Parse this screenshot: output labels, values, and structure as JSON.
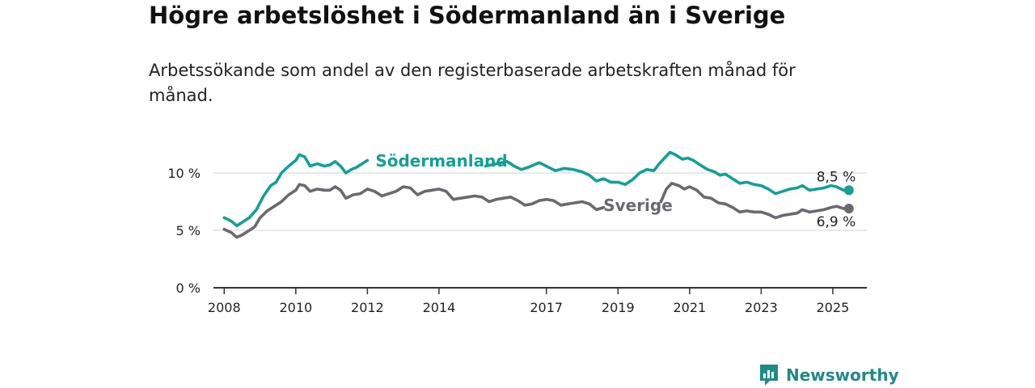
{
  "title": "Högre arbetslöshet i Södermanland än i Sverige",
  "subtitle": "Arbetssökande som andel av den registerbaserade arbetskraften månad för månad.",
  "brand": {
    "name": "Newsworthy",
    "icon": "newsworthy-logo-icon",
    "color": "#1f8a86"
  },
  "colors": {
    "sodermanland": "#13a095",
    "sverige": "#6b6870",
    "grid": "#d9d9d9",
    "axis": "#333333"
  },
  "chart_data": {
    "type": "line",
    "x_unit": "year",
    "xlim": [
      2007.7,
      2025.95
    ],
    "ylim": [
      0,
      10
    ],
    "yticks": [
      {
        "value": 0,
        "label": "0 %"
      },
      {
        "value": 5,
        "label": "5 %"
      },
      {
        "value": 10,
        "label": "10 %"
      }
    ],
    "xticks": [
      {
        "value": 2008,
        "label": "2008"
      },
      {
        "value": 2010,
        "label": "2010"
      },
      {
        "value": 2012,
        "label": "2012"
      },
      {
        "value": 2014,
        "label": "2014"
      },
      {
        "value": 2017,
        "label": "2017"
      },
      {
        "value": 2019,
        "label": "2019"
      },
      {
        "value": 2021,
        "label": "2021"
      },
      {
        "value": 2023,
        "label": "2023"
      },
      {
        "value": 2025,
        "label": "2025"
      }
    ],
    "series": [
      {
        "name": "Södermanland",
        "end_label": "8,5 %",
        "points": [
          [
            2008.0,
            6.1
          ],
          [
            2008.2,
            5.8
          ],
          [
            2008.35,
            5.4
          ],
          [
            2008.5,
            5.7
          ],
          [
            2008.7,
            6.1
          ],
          [
            2008.9,
            6.8
          ],
          [
            2009.1,
            8.0
          ],
          [
            2009.3,
            8.9
          ],
          [
            2009.45,
            9.2
          ],
          [
            2009.6,
            10.0
          ],
          [
            2009.8,
            10.6
          ],
          [
            2010.0,
            11.1
          ],
          [
            2010.1,
            11.6
          ],
          [
            2010.25,
            11.4
          ],
          [
            2010.4,
            10.6
          ],
          [
            2010.6,
            10.8
          ],
          [
            2010.8,
            10.6
          ],
          [
            2010.95,
            10.7
          ],
          [
            2011.1,
            11.0
          ],
          [
            2011.25,
            10.6
          ],
          [
            2011.4,
            10.0
          ],
          [
            2011.55,
            10.3
          ],
          [
            2011.7,
            10.5
          ],
          [
            2011.85,
            10.8
          ],
          [
            2012.0,
            11.1
          ],
          [
            2015.3,
            10.6
          ],
          [
            2015.6,
            10.8
          ],
          [
            2015.9,
            11.0
          ],
          [
            2016.1,
            10.6
          ],
          [
            2016.3,
            10.3
          ],
          [
            2016.5,
            10.5
          ],
          [
            2016.8,
            10.9
          ],
          [
            2017.0,
            10.6
          ],
          [
            2017.25,
            10.2
          ],
          [
            2017.5,
            10.4
          ],
          [
            2017.75,
            10.3
          ],
          [
            2018.0,
            10.1
          ],
          [
            2018.2,
            9.8
          ],
          [
            2018.4,
            9.3
          ],
          [
            2018.6,
            9.5
          ],
          [
            2018.8,
            9.2
          ],
          [
            2019.0,
            9.2
          ],
          [
            2019.2,
            9.0
          ],
          [
            2019.4,
            9.4
          ],
          [
            2019.6,
            10.0
          ],
          [
            2019.8,
            10.3
          ],
          [
            2020.0,
            10.2
          ],
          [
            2020.15,
            10.8
          ],
          [
            2020.3,
            11.3
          ],
          [
            2020.45,
            11.8
          ],
          [
            2020.6,
            11.6
          ],
          [
            2020.8,
            11.2
          ],
          [
            2020.95,
            11.3
          ],
          [
            2021.1,
            11.1
          ],
          [
            2021.3,
            10.7
          ],
          [
            2021.5,
            10.3
          ],
          [
            2021.7,
            10.1
          ],
          [
            2021.85,
            9.8
          ],
          [
            2022.0,
            9.9
          ],
          [
            2022.2,
            9.5
          ],
          [
            2022.4,
            9.1
          ],
          [
            2022.6,
            9.2
          ],
          [
            2022.8,
            9.0
          ],
          [
            2023.0,
            8.9
          ],
          [
            2023.2,
            8.6
          ],
          [
            2023.4,
            8.2
          ],
          [
            2023.6,
            8.4
          ],
          [
            2023.8,
            8.6
          ],
          [
            2024.0,
            8.7
          ],
          [
            2024.15,
            8.9
          ],
          [
            2024.35,
            8.5
          ],
          [
            2024.55,
            8.6
          ],
          [
            2024.75,
            8.7
          ],
          [
            2024.95,
            8.9
          ],
          [
            2025.1,
            8.8
          ],
          [
            2025.3,
            8.5
          ],
          [
            2025.45,
            8.5
          ]
        ]
      },
      {
        "name": "Sverige",
        "end_label": "6,9 %",
        "points": [
          [
            2008.0,
            5.1
          ],
          [
            2008.2,
            4.8
          ],
          [
            2008.35,
            4.4
          ],
          [
            2008.5,
            4.6
          ],
          [
            2008.7,
            5.0
          ],
          [
            2008.85,
            5.3
          ],
          [
            2009.0,
            6.1
          ],
          [
            2009.2,
            6.7
          ],
          [
            2009.4,
            7.1
          ],
          [
            2009.6,
            7.5
          ],
          [
            2009.8,
            8.1
          ],
          [
            2010.0,
            8.5
          ],
          [
            2010.1,
            9.0
          ],
          [
            2010.25,
            8.9
          ],
          [
            2010.4,
            8.4
          ],
          [
            2010.6,
            8.6
          ],
          [
            2010.8,
            8.5
          ],
          [
            2010.95,
            8.5
          ],
          [
            2011.1,
            8.8
          ],
          [
            2011.25,
            8.5
          ],
          [
            2011.4,
            7.8
          ],
          [
            2011.6,
            8.1
          ],
          [
            2011.8,
            8.2
          ],
          [
            2012.0,
            8.6
          ],
          [
            2012.2,
            8.4
          ],
          [
            2012.4,
            8.0
          ],
          [
            2012.6,
            8.2
          ],
          [
            2012.8,
            8.4
          ],
          [
            2013.0,
            8.8
          ],
          [
            2013.2,
            8.7
          ],
          [
            2013.4,
            8.1
          ],
          [
            2013.6,
            8.4
          ],
          [
            2013.8,
            8.5
          ],
          [
            2014.0,
            8.6
          ],
          [
            2014.2,
            8.4
          ],
          [
            2014.4,
            7.7
          ],
          [
            2014.6,
            7.8
          ],
          [
            2014.8,
            7.9
          ],
          [
            2015.0,
            8.0
          ],
          [
            2015.2,
            7.9
          ],
          [
            2015.4,
            7.5
          ],
          [
            2015.6,
            7.7
          ],
          [
            2015.8,
            7.8
          ],
          [
            2016.0,
            7.9
          ],
          [
            2016.2,
            7.6
          ],
          [
            2016.4,
            7.2
          ],
          [
            2016.6,
            7.3
          ],
          [
            2016.8,
            7.6
          ],
          [
            2017.0,
            7.7
          ],
          [
            2017.2,
            7.6
          ],
          [
            2017.4,
            7.2
          ],
          [
            2017.6,
            7.3
          ],
          [
            2017.8,
            7.4
          ],
          [
            2018.0,
            7.5
          ],
          [
            2018.2,
            7.3
          ],
          [
            2018.4,
            6.8
          ],
          [
            2018.6,
            7.0
          ],
          [
            2020.2,
            7.5
          ],
          [
            2020.35,
            8.6
          ],
          [
            2020.5,
            9.1
          ],
          [
            2020.7,
            8.9
          ],
          [
            2020.85,
            8.6
          ],
          [
            2021.0,
            8.8
          ],
          [
            2021.2,
            8.5
          ],
          [
            2021.4,
            7.9
          ],
          [
            2021.6,
            7.8
          ],
          [
            2021.8,
            7.4
          ],
          [
            2022.0,
            7.3
          ],
          [
            2022.2,
            7.0
          ],
          [
            2022.4,
            6.6
          ],
          [
            2022.6,
            6.7
          ],
          [
            2022.8,
            6.6
          ],
          [
            2023.0,
            6.6
          ],
          [
            2023.2,
            6.4
          ],
          [
            2023.4,
            6.1
          ],
          [
            2023.6,
            6.3
          ],
          [
            2023.8,
            6.4
          ],
          [
            2024.0,
            6.5
          ],
          [
            2024.15,
            6.8
          ],
          [
            2024.35,
            6.6
          ],
          [
            2024.55,
            6.7
          ],
          [
            2024.75,
            6.8
          ],
          [
            2024.95,
            7.0
          ],
          [
            2025.1,
            7.1
          ],
          [
            2025.3,
            6.9
          ],
          [
            2025.45,
            6.9
          ]
        ]
      }
    ]
  }
}
